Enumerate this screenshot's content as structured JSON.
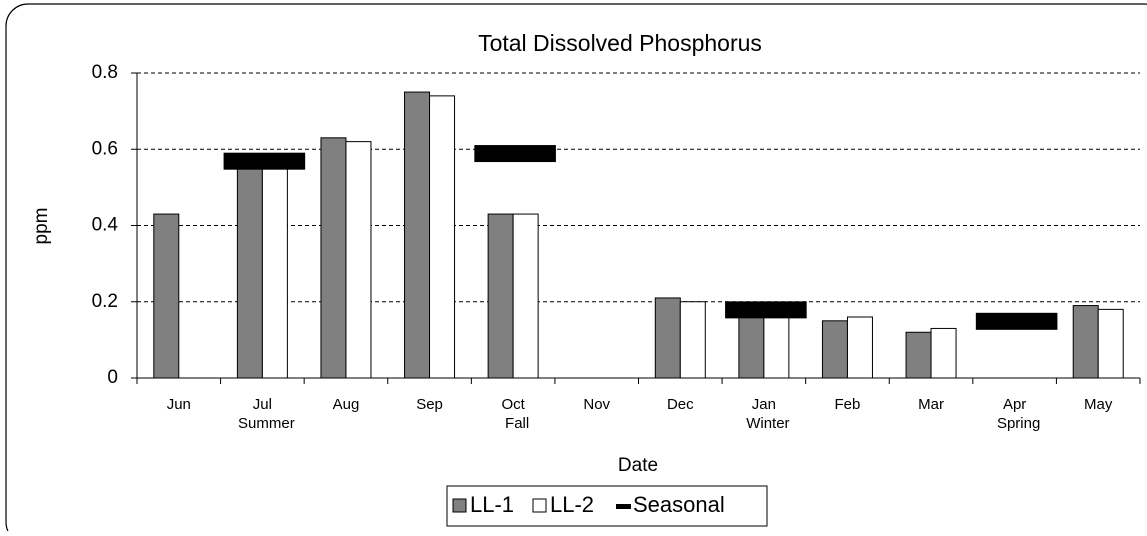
{
  "chart_data": {
    "type": "bar",
    "title": "Total Dissolved Phosphorus",
    "x_label": "Date",
    "y_label": "ppm",
    "categories": [
      "Jun",
      "Jul",
      "Aug",
      "Sep",
      "Oct",
      "Nov",
      "Dec",
      "Jan",
      "Feb",
      "Mar",
      "Apr",
      "May"
    ],
    "category_sublabels": [
      null,
      "Summer",
      null,
      null,
      "Fall",
      null,
      null,
      "Winter",
      null,
      null,
      "Spring",
      null
    ],
    "series": [
      {
        "name": "LL-1",
        "color": "#808080",
        "values": [
          0.43,
          0.56,
          0.63,
          0.75,
          0.43,
          null,
          0.21,
          0.17,
          0.15,
          0.12,
          null,
          0.19
        ]
      },
      {
        "name": "LL-2",
        "color": "#ffffff",
        "values": [
          null,
          0.56,
          0.62,
          0.74,
          0.43,
          null,
          0.2,
          0.17,
          0.16,
          0.13,
          null,
          0.18
        ]
      },
      {
        "name": "Seasonal",
        "color": "#000000",
        "values": [
          null,
          0.57,
          null,
          null,
          0.59,
          null,
          null,
          0.18,
          null,
          null,
          0.15,
          null
        ]
      }
    ],
    "ylim": [
      0,
      0.8
    ],
    "yticks": [
      0,
      0.2,
      0.4,
      0.6,
      0.8
    ],
    "grid": true,
    "legend": "bottom"
  }
}
